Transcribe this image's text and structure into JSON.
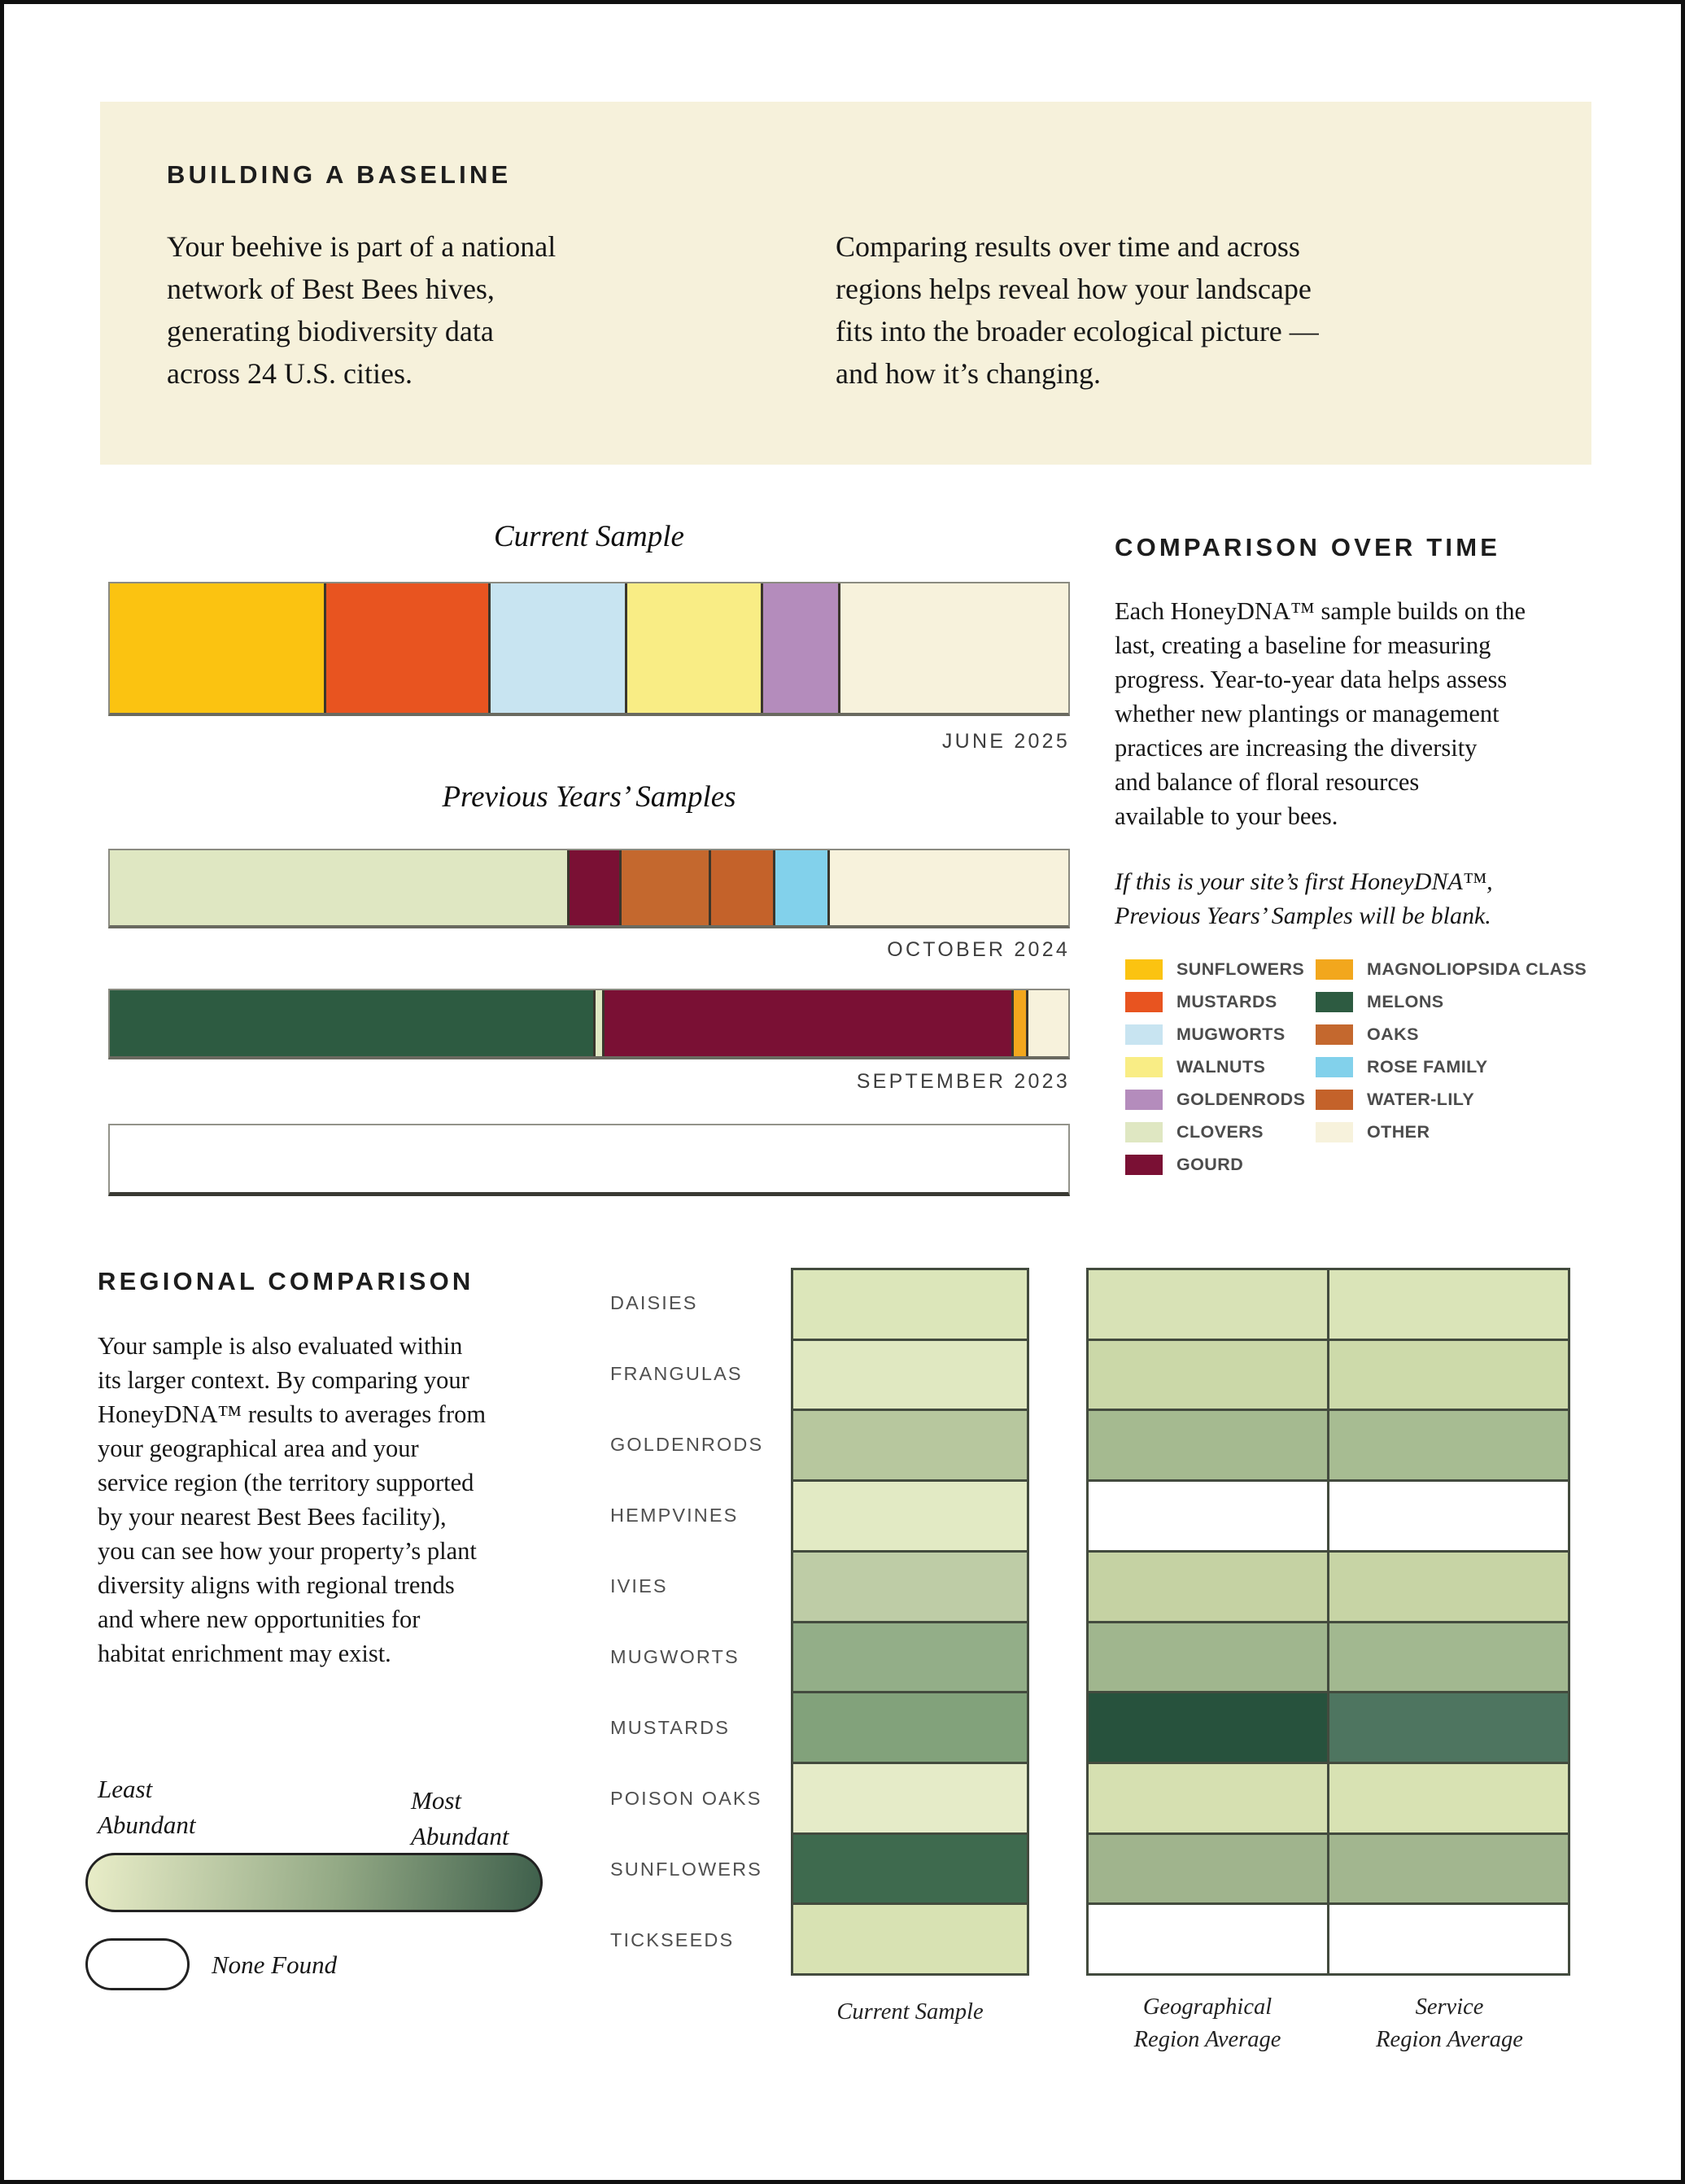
{
  "intro": {
    "heading": "BUILDING A BASELINE",
    "paragraph_left": "Your beehive is part of a national\nnetwork of Best Bees hives,\ngenerating biodiversity data\nacross 24 U.S. cities.",
    "paragraph_right": "Comparing results over time and across\nregions helps reveal how your landscape\nfits into the broader ecological picture —\nand how it’s changing."
  },
  "comparison": {
    "heading": "COMPARISON OVER TIME",
    "body": "Each HoneyDNA™ sample builds on the\nlast, creating a baseline for measuring\nprogress. Year-to-year data helps assess\nwhether new plantings or management\npractices are increasing the diversity\nand balance of floral resources\navailable to your bees.",
    "note": "If this is your site’s first HoneyDNA™,\nPrevious Years’ Samples will be blank."
  },
  "regional": {
    "heading": "REGIONAL COMPARISON",
    "body": "Your sample is also evaluated within\nits larger context. By comparing your\nHoneyDNA™ results to averages from\nyour geographical area and your\nservice region (the territory supported\nby your nearest Best Bees facility),\nyou can see how your property’s plant\ndiversity aligns with regional trends\nand where new opportunities for\nhabitat enrichment may exist."
  },
  "abundance_scale": {
    "least_label": "Least\nAbundant",
    "most_label": "Most\nAbundant",
    "none_label": "None Found",
    "gradient": [
      "#E9EDC8",
      "#3E5F4B"
    ],
    "none_color": "#FFFFFF"
  },
  "legend": {
    "columns": [
      [
        {
          "label": "SUNFLOWERS",
          "color": "#FBC311"
        },
        {
          "label": "MUSTARDS",
          "color": "#E85420"
        },
        {
          "label": "MUGWORTS",
          "color": "#C8E4F1"
        },
        {
          "label": "WALNUTS",
          "color": "#F9ED85"
        },
        {
          "label": "GOLDENRODS",
          "color": "#B48CBC"
        },
        {
          "label": "CLOVERS",
          "color": "#DFE7C2"
        },
        {
          "label": "GOURD",
          "color": "#7A1034"
        }
      ],
      [
        {
          "label": "MAGNOLIOPSIDA CLASS",
          "color": "#F2A71D"
        },
        {
          "label": "MELONS",
          "color": "#2D5B41"
        },
        {
          "label": "OAKS",
          "color": "#C4682E"
        },
        {
          "label": "ROSE FAMILY",
          "color": "#82D1EB"
        },
        {
          "label": "WATER-LILY",
          "color": "#C4622A"
        },
        {
          "label": "OTHER",
          "color": "#F7F2DC"
        }
      ]
    ]
  },
  "chart_data": {
    "bars": [
      {
        "id": "june-2025",
        "type": "bar",
        "subtype": "horizontal-stacked",
        "title": "Current Sample",
        "date_label": "JUNE 2025",
        "unit": "percent of sample",
        "segments": [
          {
            "name": "Sunflowers",
            "color": "#FBC311",
            "pct": 22.3
          },
          {
            "name": "Mustards",
            "color": "#E85420",
            "pct": 17.2
          },
          {
            "name": "Mugworts",
            "color": "#C8E4F1",
            "pct": 14.2
          },
          {
            "name": "Walnuts",
            "color": "#F9ED85",
            "pct": 14.2
          },
          {
            "name": "Goldenrods",
            "color": "#B48CBC",
            "pct": 8.1
          },
          {
            "name": "Other",
            "color": "#F7F2DC",
            "pct": 24.0
          }
        ]
      },
      {
        "id": "october-2024",
        "type": "bar",
        "subtype": "horizontal-stacked",
        "group_title": "Previous Years’ Samples",
        "date_label": "OCTOBER 2024",
        "unit": "percent of sample",
        "segments": [
          {
            "name": "Clovers",
            "color": "#DFE7C2",
            "pct": 47.7
          },
          {
            "name": "Gourd",
            "color": "#7A1034",
            "pct": 5.4
          },
          {
            "name": "Oaks",
            "color": "#C4682E",
            "pct": 9.4
          },
          {
            "name": "Water-Lily",
            "color": "#C4622A",
            "pct": 6.7
          },
          {
            "name": "Rose Family",
            "color": "#82D1EB",
            "pct": 5.7
          },
          {
            "name": "Other",
            "color": "#F7F2DC",
            "pct": 25.1
          }
        ]
      },
      {
        "id": "september-2023",
        "type": "bar",
        "subtype": "horizontal-stacked",
        "date_label": "SEPTEMBER 2023",
        "unit": "percent of sample",
        "segments": [
          {
            "name": "Melons",
            "color": "#2D5B41",
            "pct": 50.4
          },
          {
            "name": "Clovers",
            "color": "#DFE7C2",
            "pct": 1.0
          },
          {
            "name": "Gourd",
            "color": "#7A1034",
            "pct": 42.7
          },
          {
            "name": "Magnoliopsida Class",
            "color": "#F2A71D",
            "pct": 1.5
          },
          {
            "name": "Other",
            "color": "#F7F2DC",
            "pct": 4.4
          }
        ]
      },
      {
        "id": "blank",
        "type": "bar",
        "subtype": "horizontal-stacked",
        "date_label": "",
        "segments": []
      }
    ],
    "heatmap": {
      "type": "heatmap",
      "rows": [
        "DAISIES",
        "FRANGULAS",
        "GOLDENRODS",
        "HEMPVINES",
        "IVIES",
        "MUGWORTS",
        "MUSTARDS",
        "POISON OAKS",
        "SUNFLOWERS",
        "TICKSEEDS"
      ],
      "columns": [
        "Current Sample",
        "Geographical\nRegion Average",
        "Service\nRegion Average"
      ],
      "scale_note": "darker green = more abundant; white = none found",
      "cells": {
        "current": [
          "#DCE6BA",
          "#E0E8C1",
          "#B7C79E",
          "#E2EAC4",
          "#BECCA6",
          "#93AE88",
          "#82A27B",
          "#E5EBC8",
          "#3E6A4E",
          "#D8E2B3"
        ],
        "geographical": [
          "#D8E2B6",
          "#CBD8A8",
          "#A5BA90",
          null,
          "#C5D2A3",
          "#A0B68E",
          "#27523D",
          "#D6E0B1",
          "#A0B48D",
          null
        ],
        "service": [
          "#DAE4B8",
          "#CDDAAA",
          "#A7BC92",
          null,
          "#C7D4A5",
          "#A2B890",
          "#4E7560",
          "#D8E2B3",
          "#A2B68F",
          null
        ]
      }
    }
  }
}
